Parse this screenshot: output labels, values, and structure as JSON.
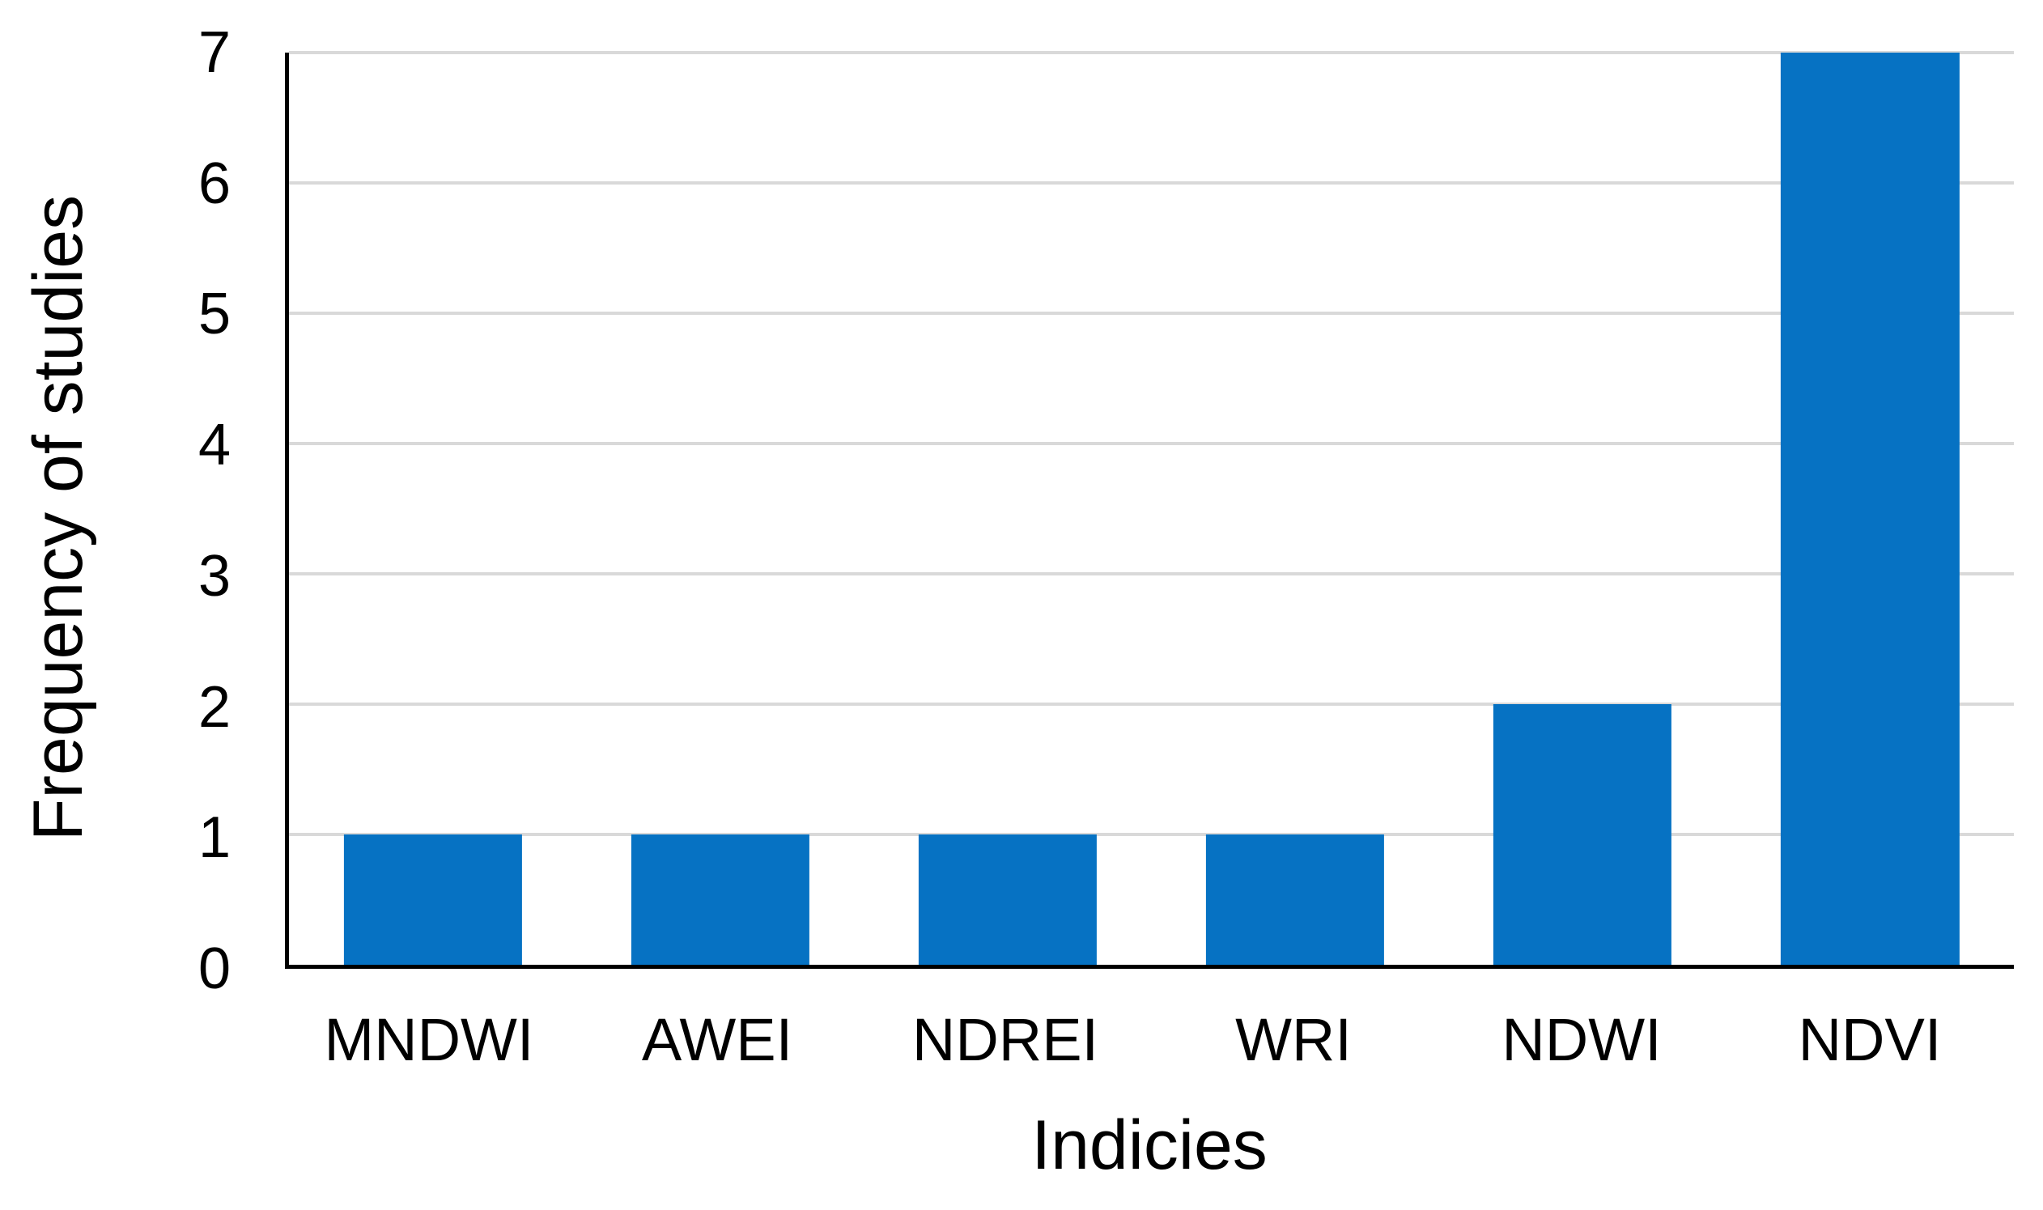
{
  "chart_data": {
    "type": "bar",
    "title": "",
    "categories": [
      "MNDWI",
      "AWEI",
      "NDREI",
      "WRI",
      "NDWI",
      "NDVI"
    ],
    "values": [
      1,
      1,
      1,
      1,
      2,
      7
    ],
    "xlabel": "Indicies",
    "ylabel": "Frequency of studies",
    "ylim": [
      0,
      7
    ],
    "yticks": [
      0,
      1,
      2,
      3,
      4,
      5,
      6,
      7
    ],
    "grid": true,
    "gridline_ticks": [
      1,
      2,
      3,
      4,
      5,
      6,
      7
    ],
    "legend_position": "none",
    "bar_width_fraction": 0.62,
    "colors": {
      "bar": "#0672C3",
      "gridline": "#D9D9D9",
      "axis_line": "#000000",
      "text": "#000000",
      "background": "#FFFFFF"
    }
  }
}
